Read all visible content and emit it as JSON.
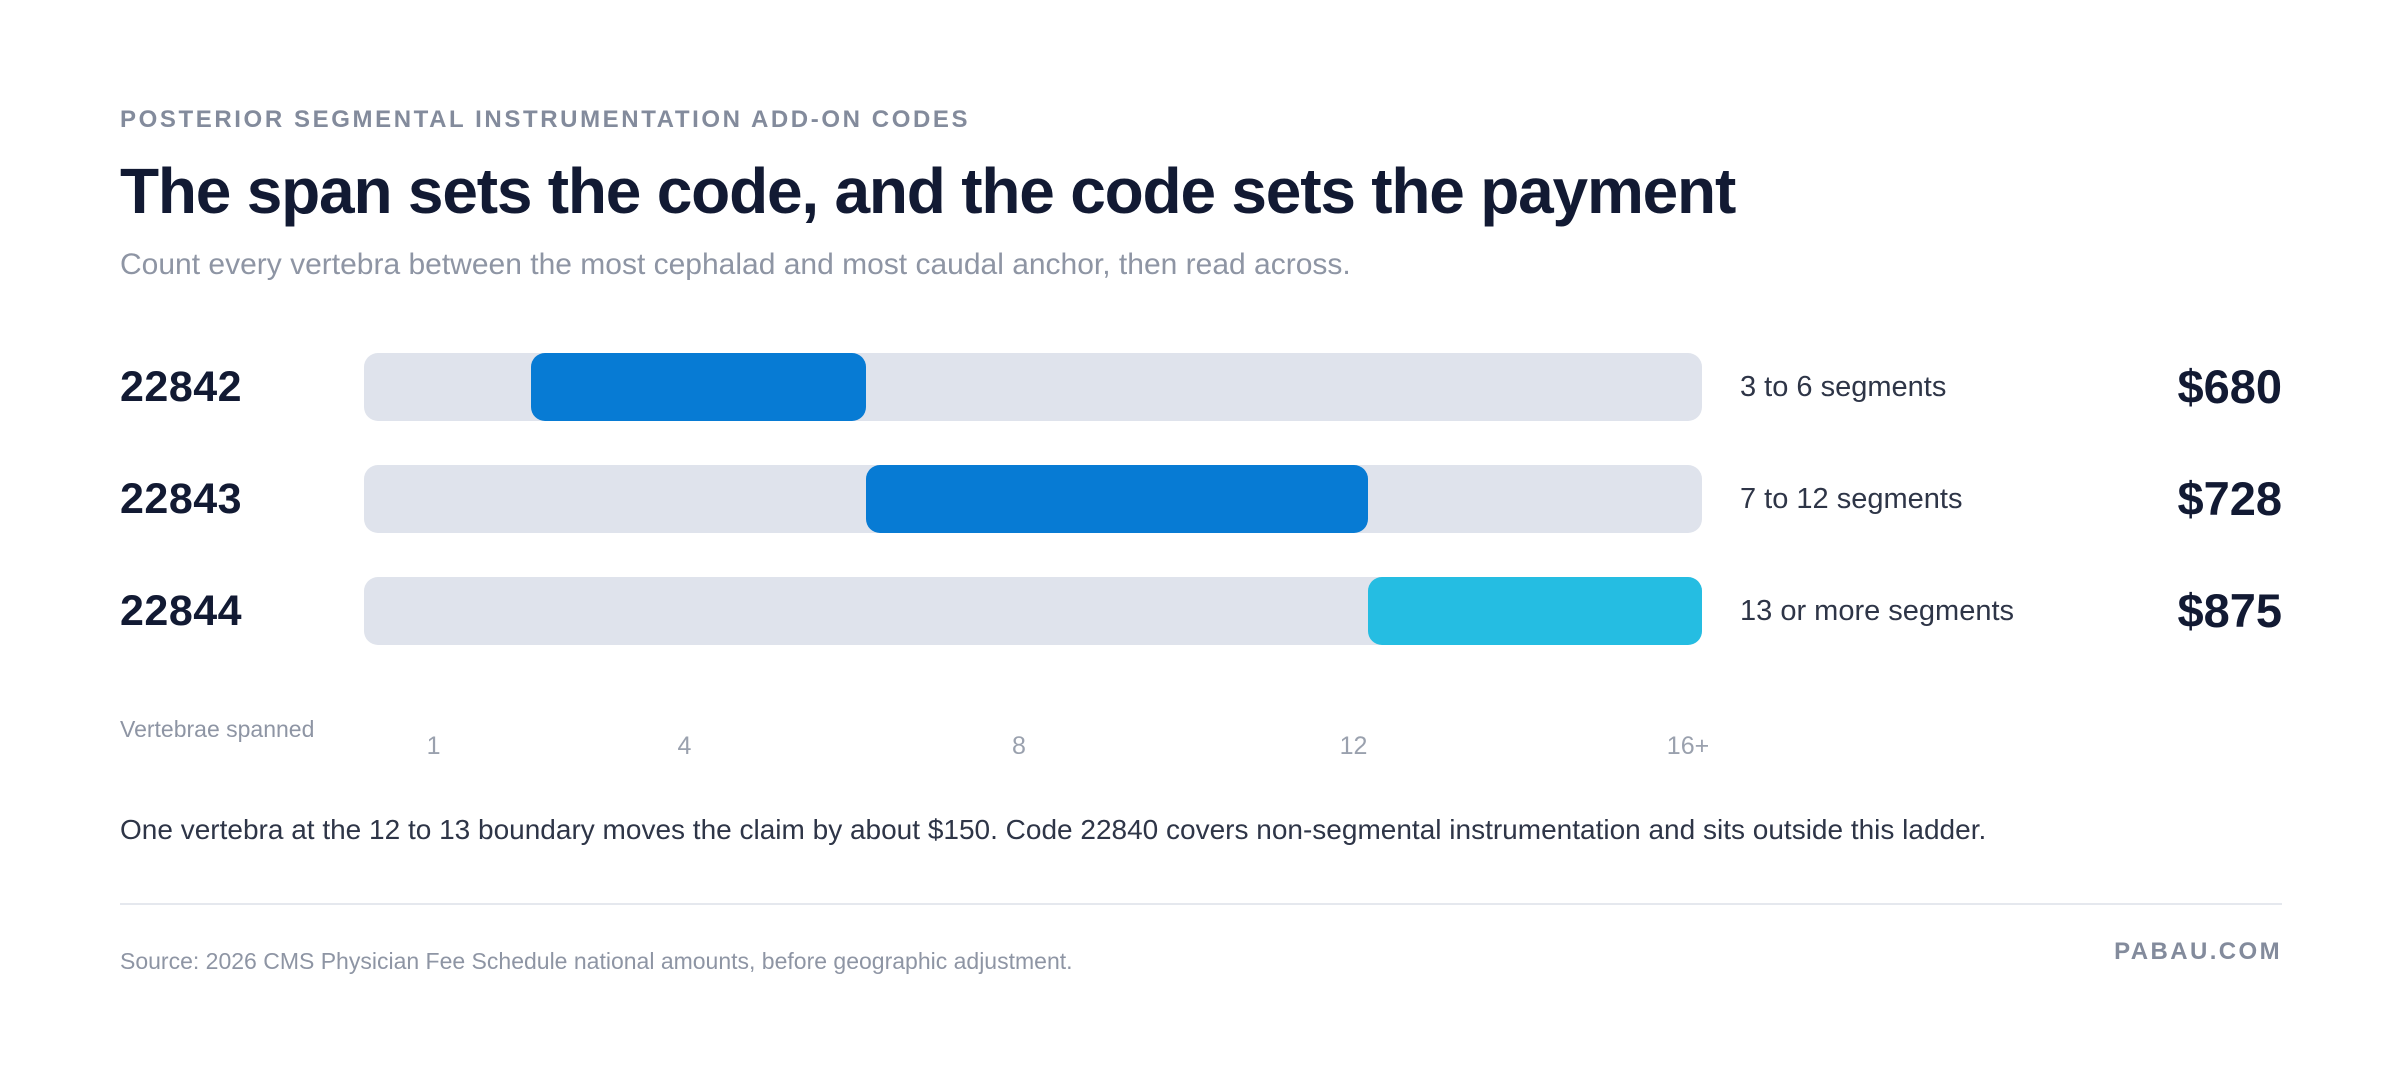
{
  "header": {
    "eyebrow": "POSTERIOR SEGMENTAL INSTRUMENTATION ADD-ON CODES",
    "title": "The span sets the code, and the code sets the payment",
    "subtitle": "Count every vertebra between the most cephalad and most caudal anchor, then read across."
  },
  "chart_data": {
    "type": "bar",
    "orientation": "horizontal-range",
    "x_axis": {
      "label": "Vertebrae spanned",
      "range": [
        0,
        16
      ],
      "ticks": [
        {
          "value": 1,
          "label": "1"
        },
        {
          "value": 4,
          "label": "4"
        },
        {
          "value": 8,
          "label": "8"
        },
        {
          "value": 12,
          "label": "12"
        },
        {
          "value": 16,
          "label": "16+"
        }
      ]
    },
    "rows": [
      {
        "code": "22842",
        "start": 2,
        "end": 6,
        "range_label": "3 to 6 segments",
        "payment": "$680",
        "payment_value": 680,
        "color": "#077bd4"
      },
      {
        "code": "22843",
        "start": 6,
        "end": 12,
        "range_label": "7 to 12 segments",
        "payment": "$728",
        "payment_value": 728,
        "color": "#077bd4"
      },
      {
        "code": "22844",
        "start": 12,
        "end": 16,
        "range_label": "13 or more segments",
        "payment": "$875",
        "payment_value": 875,
        "color": "#25bde2"
      }
    ],
    "track_color": "#dfe3ec",
    "grid": false
  },
  "note": "One vertebra at the 12 to 13 boundary moves the claim by about $150. Code 22840 covers non-segmental instrumentation and sits outside this ladder.",
  "footer": {
    "source": "Source: 2026 CMS Physician Fee Schedule national amounts, before geographic adjustment.",
    "brand": "PABAU.COM"
  }
}
